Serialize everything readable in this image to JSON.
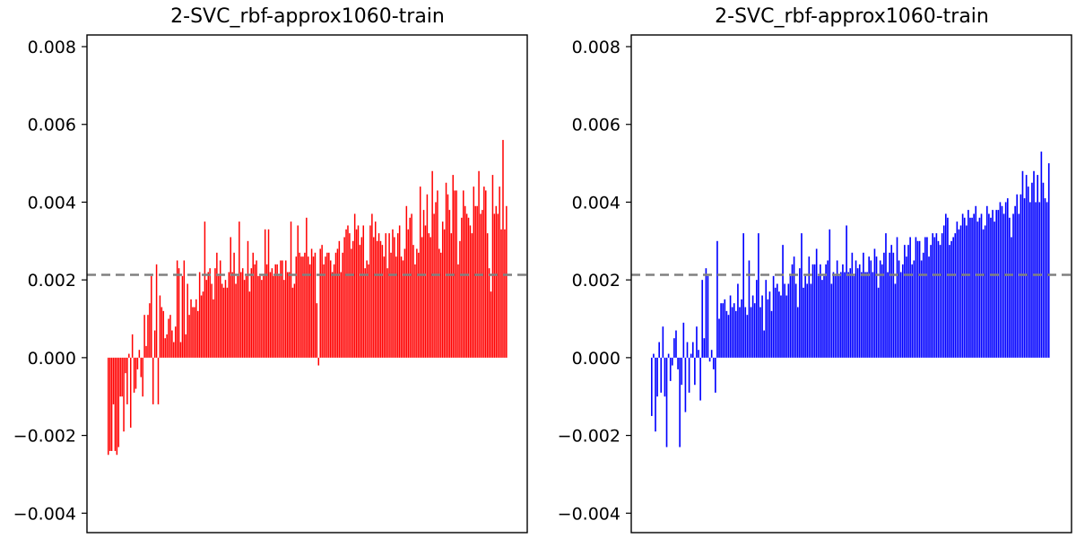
{
  "chart_data": [
    {
      "type": "bar",
      "title": "2-SVC_rbf-approx1060-train",
      "xlabel": "",
      "ylabel": "",
      "ylim": [
        -0.0045,
        0.0083
      ],
      "yticks": [
        "0.008",
        "0.006",
        "0.004",
        "0.002",
        "0.000",
        "−0.002",
        "−0.004"
      ],
      "ytick_values": [
        0.008,
        0.006,
        0.004,
        0.002,
        0.0,
        -0.002,
        -0.004
      ],
      "reference_line": 0.00213,
      "bar_color": "#ff0000",
      "reference_color": "#808080",
      "values": [
        -0.0025,
        -0.0024,
        -0.0024,
        -0.0012,
        -0.0024,
        -0.0025,
        -0.0023,
        -0.001,
        -0.001,
        -0.0019,
        -0.0004,
        -0.0012,
        0.0001,
        -0.0018,
        0.0006,
        -0.0009,
        -0.0008,
        -0.0003,
        0.0002,
        -0.0005,
        -0.001,
        0.0011,
        0.0003,
        0.0011,
        0.0014,
        0.0021,
        -0.0012,
        0.0007,
        0.0024,
        -0.0012,
        0.0016,
        0.0013,
        0.0012,
        0.0005,
        0.0006,
        0.001,
        0.0011,
        0.0007,
        0.0004,
        0.0008,
        0.0025,
        0.0023,
        0.0004,
        0.0021,
        0.0025,
        0.0006,
        0.0019,
        0.0011,
        0.0015,
        0.0013,
        0.0013,
        0.0015,
        0.0012,
        0.0022,
        0.0016,
        0.0017,
        0.0035,
        0.002,
        0.0022,
        0.0023,
        0.0019,
        0.0015,
        0.0023,
        0.0027,
        0.0021,
        0.0025,
        0.0019,
        0.0018,
        0.002,
        0.0018,
        0.0022,
        0.0031,
        0.0022,
        0.0027,
        0.0019,
        0.0021,
        0.0035,
        0.0022,
        0.0023,
        0.002,
        0.0021,
        0.003,
        0.0017,
        0.0023,
        0.0027,
        0.0024,
        0.0025,
        0.0021,
        0.0021,
        0.002,
        0.0021,
        0.0033,
        0.0024,
        0.0033,
        0.0022,
        0.0023,
        0.0021,
        0.0024,
        0.0024,
        0.0021,
        0.0025,
        0.0025,
        0.002,
        0.0025,
        0.0022,
        0.0022,
        0.0035,
        0.0018,
        0.0019,
        0.0026,
        0.0034,
        0.0027,
        0.0026,
        0.0026,
        0.0027,
        0.0036,
        0.0026,
        0.0024,
        0.0028,
        0.0026,
        0.0027,
        0.0014,
        -0.0002,
        0.0028,
        0.0029,
        0.0024,
        0.0026,
        0.0027,
        0.0027,
        0.0025,
        0.0022,
        0.0024,
        0.0027,
        0.0028,
        0.003,
        0.0022,
        0.0027,
        0.0031,
        0.0033,
        0.0034,
        0.0032,
        0.0028,
        0.003,
        0.0037,
        0.0033,
        0.0034,
        0.0029,
        0.0031,
        0.0034,
        0.0023,
        0.0025,
        0.0024,
        0.0034,
        0.0037,
        0.0031,
        0.0035,
        0.003,
        0.0032,
        0.003,
        0.0029,
        0.0026,
        0.0032,
        0.0023,
        0.0032,
        0.0027,
        0.0033,
        0.0031,
        0.0026,
        0.0032,
        0.0034,
        0.0026,
        0.0025,
        0.0028,
        0.0039,
        0.0033,
        0.0036,
        0.0037,
        0.0029,
        0.0024,
        0.0028,
        0.0027,
        0.0044,
        0.0031,
        0.0038,
        0.0034,
        0.0042,
        0.0032,
        0.0031,
        0.0048,
        0.0037,
        0.004,
        0.0043,
        0.0028,
        0.0027,
        0.0035,
        0.0033,
        0.0045,
        0.0042,
        0.0038,
        0.0032,
        0.0047,
        0.0043,
        0.0043,
        0.0024,
        0.003,
        0.0036,
        0.0043,
        0.0039,
        0.0037,
        0.0036,
        0.0034,
        0.0032,
        0.0044,
        0.0039,
        0.0039,
        0.0048,
        0.0037,
        0.0038,
        0.0044,
        0.0043,
        0.0032,
        0.0023,
        0.0017,
        0.0047,
        0.0037,
        0.0039,
        0.0037,
        0.0044,
        0.0033,
        0.0056,
        0.0033,
        0.0039
      ]
    },
    {
      "type": "bar",
      "title": "2-SVC_rbf-approx1060-train",
      "xlabel": "",
      "ylabel": "",
      "ylim": [
        -0.0045,
        0.0083
      ],
      "yticks": [
        "0.008",
        "0.006",
        "0.004",
        "0.002",
        "0.000",
        "−0.002",
        "−0.004"
      ],
      "ytick_values": [
        0.008,
        0.006,
        0.004,
        0.002,
        0.0,
        -0.002,
        -0.004
      ],
      "reference_line": 0.00213,
      "bar_color": "#0000ff",
      "reference_color": "#808080",
      "values": [
        -0.0015,
        0.0001,
        -0.0019,
        -0.001,
        0.0004,
        -0.0009,
        0.0008,
        -0.001,
        -0.0023,
        0.0001,
        -0.0006,
        -0.0002,
        0.0005,
        0.0007,
        -0.0003,
        -0.0023,
        -0.0007,
        0.0009,
        -0.0014,
        0.0004,
        -0.0009,
        0.0001,
        0.0004,
        -0.0007,
        0.0008,
        0.0002,
        -0.0011,
        0.002,
        0.0005,
        0.0023,
        0.0021,
        -0.0001,
        0.0002,
        -0.0003,
        -0.0009,
        0.003,
        0.001,
        0.0014,
        0.0014,
        0.0015,
        0.0012,
        0.0011,
        0.0016,
        0.0013,
        0.0014,
        0.0012,
        0.0019,
        0.0013,
        0.0015,
        0.0032,
        0.0013,
        0.0011,
        0.0025,
        0.0013,
        0.0016,
        0.0014,
        0.002,
        0.0032,
        0.0013,
        0.0016,
        0.0007,
        0.002,
        0.0015,
        0.0017,
        0.0012,
        0.0021,
        0.0018,
        0.0019,
        0.0017,
        0.0016,
        0.0029,
        0.0019,
        0.0016,
        0.0019,
        0.0021,
        0.0024,
        0.0026,
        0.0019,
        0.0013,
        0.0023,
        0.0032,
        0.0018,
        0.0021,
        0.0019,
        0.0026,
        0.0019,
        0.0024,
        0.0024,
        0.0028,
        0.0021,
        0.0024,
        0.002,
        0.0021,
        0.0024,
        0.0025,
        0.0033,
        0.0019,
        0.0022,
        0.0021,
        0.0025,
        0.0021,
        0.0022,
        0.0024,
        0.0022,
        0.0034,
        0.0022,
        0.0023,
        0.0027,
        0.0021,
        0.0025,
        0.0023,
        0.0024,
        0.0022,
        0.0027,
        0.0022,
        0.0022,
        0.0026,
        0.0025,
        0.0022,
        0.0028,
        0.0026,
        0.0018,
        0.0025,
        0.0024,
        0.0027,
        0.0032,
        0.0022,
        0.0027,
        0.0029,
        0.0027,
        0.0019,
        0.0031,
        0.0025,
        0.0022,
        0.0024,
        0.0029,
        0.0026,
        0.0029,
        0.0031,
        0.0024,
        0.0025,
        0.0031,
        0.003,
        0.003,
        0.0025,
        0.0027,
        0.0031,
        0.0031,
        0.0026,
        0.0029,
        0.0032,
        0.0031,
        0.0032,
        0.003,
        0.0029,
        0.0032,
        0.0034,
        0.0037,
        0.0036,
        0.0029,
        0.003,
        0.0031,
        0.0032,
        0.0035,
        0.0033,
        0.0034,
        0.0037,
        0.0036,
        0.0034,
        0.0038,
        0.0036,
        0.0036,
        0.0037,
        0.0039,
        0.0035,
        0.0036,
        0.0037,
        0.0033,
        0.0034,
        0.0039,
        0.0037,
        0.0036,
        0.0038,
        0.0035,
        0.0038,
        0.0038,
        0.004,
        0.0039,
        0.0037,
        0.004,
        0.0041,
        0.0036,
        0.0031,
        0.0037,
        0.0039,
        0.0042,
        0.0037,
        0.0042,
        0.0048,
        0.0041,
        0.0047,
        0.0044,
        0.004,
        0.0045,
        0.0048,
        0.004,
        0.0047,
        0.004,
        0.0053,
        0.0045,
        0.0041,
        0.004,
        0.005
      ]
    }
  ]
}
